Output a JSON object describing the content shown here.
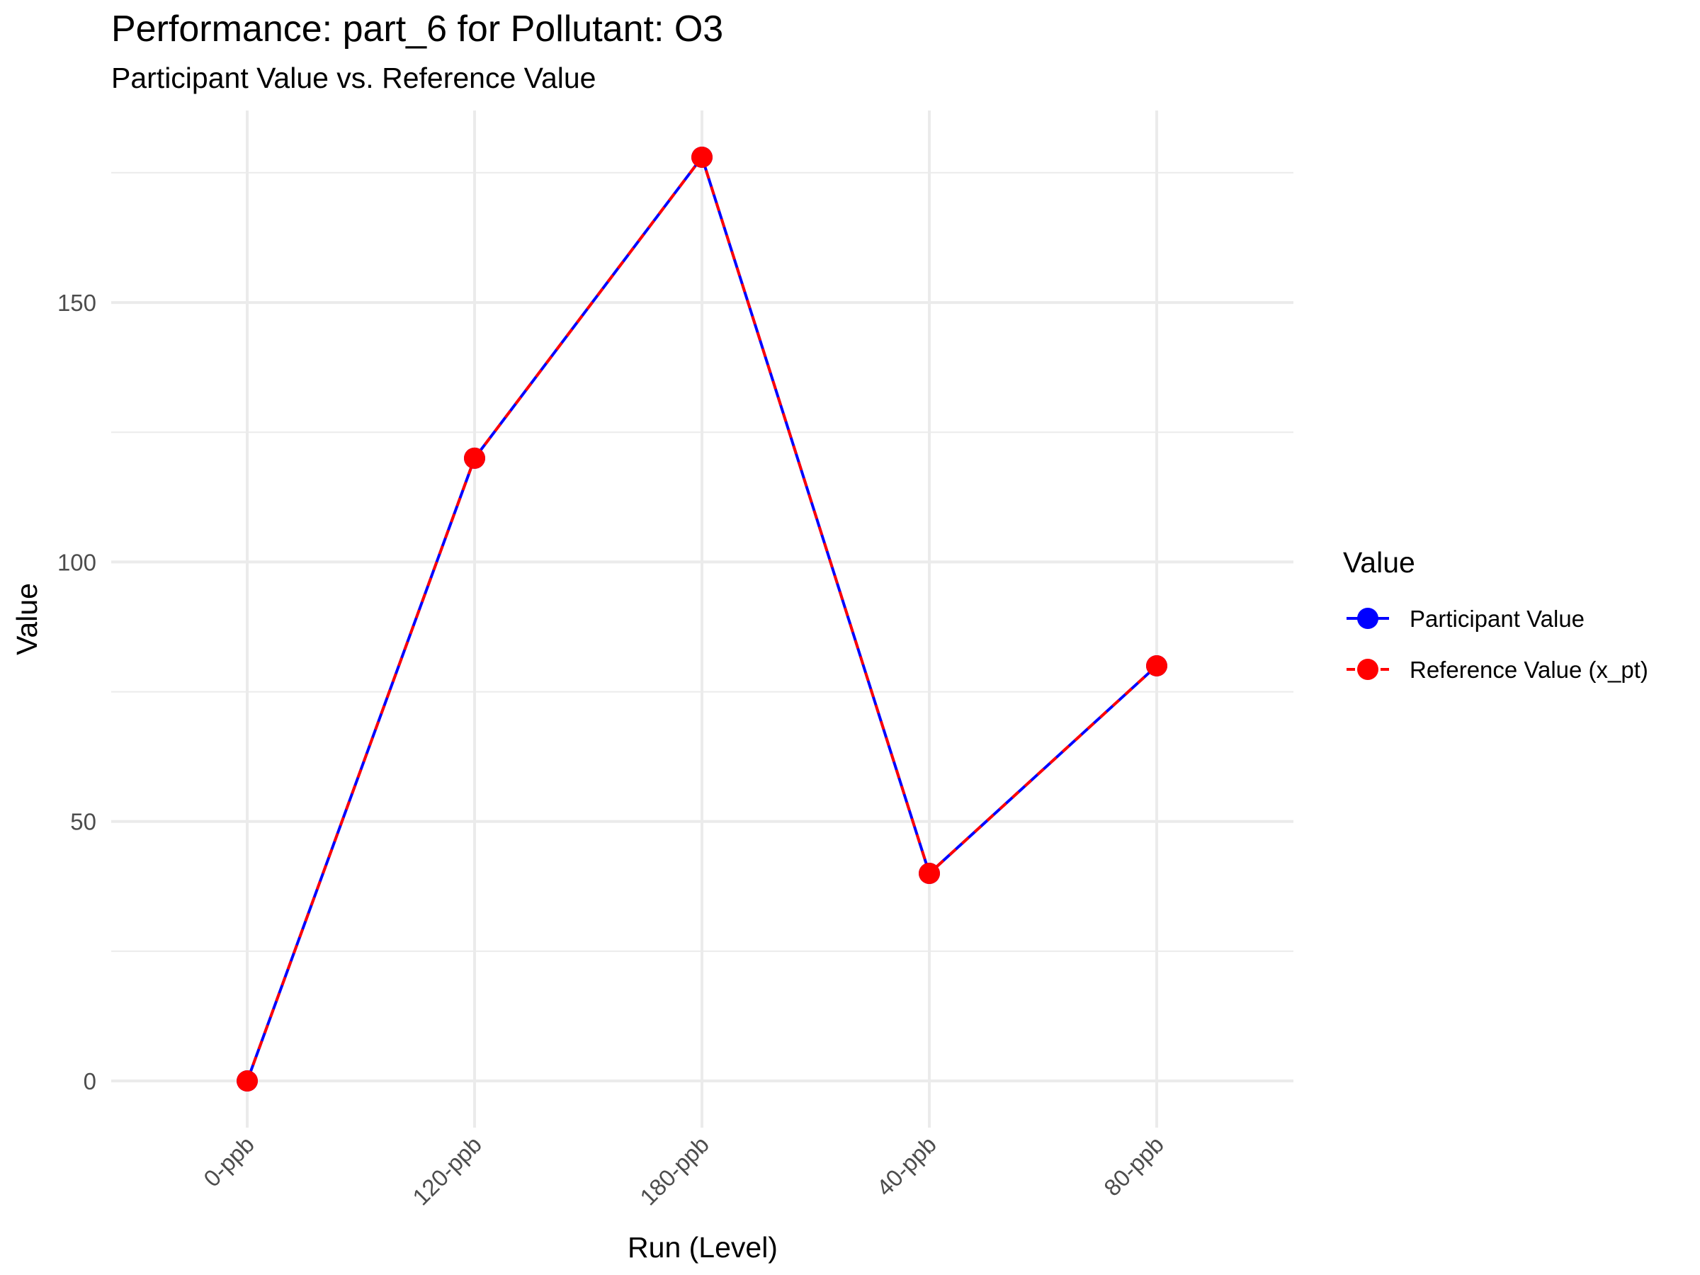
{
  "chart_data": {
    "type": "line",
    "title": "Performance: part_6 for Pollutant: O3",
    "subtitle": "Participant Value vs. Reference Value",
    "xlabel": "Run (Level)",
    "ylabel": "Value",
    "categories": [
      "0-ppb",
      "120-ppb",
      "180-ppb",
      "40-ppb",
      "80-ppb"
    ],
    "ylim": [
      -9,
      187
    ],
    "yticks": [
      0,
      50,
      100,
      150
    ],
    "grid": true,
    "legend": {
      "title": "Value",
      "placement": "right"
    },
    "series": [
      {
        "name": "Participant Value",
        "values": [
          0,
          120,
          178,
          40,
          80
        ],
        "color": "#0000ff",
        "line": "solid"
      },
      {
        "name": "Reference Value (x_pt)",
        "values": [
          0,
          120,
          178,
          40,
          80
        ],
        "color": "#ff0000",
        "line": "dashed"
      }
    ]
  }
}
